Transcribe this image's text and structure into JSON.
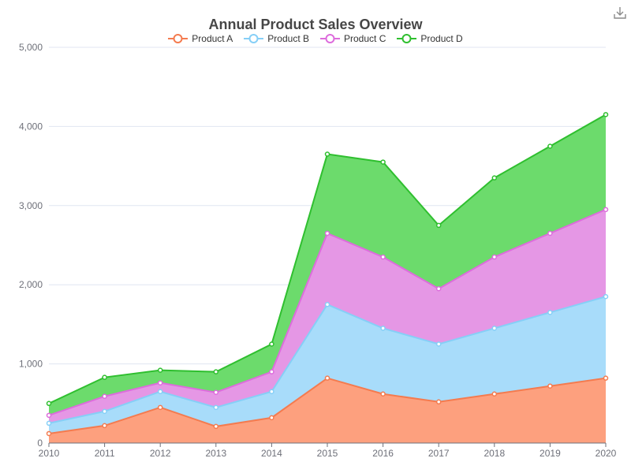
{
  "chart_data": {
    "type": "area",
    "stacked": true,
    "title": "Annual Product Sales Overview",
    "x": [
      "2010",
      "2011",
      "2012",
      "2013",
      "2014",
      "2015",
      "2016",
      "2017",
      "2018",
      "2019",
      "2020"
    ],
    "series": [
      {
        "name": "Product A",
        "color": "#f47b4f",
        "fill": "#fda07e",
        "values": [
          120,
          220,
          450,
          210,
          320,
          820,
          620,
          520,
          620,
          720,
          820
        ]
      },
      {
        "name": "Product B",
        "color": "#86cff7",
        "fill": "#a8dcfa",
        "values": [
          130,
          180,
          200,
          240,
          330,
          930,
          830,
          730,
          830,
          930,
          1030
        ]
      },
      {
        "name": "Product C",
        "color": "#dd6cdc",
        "fill": "#e597e5",
        "values": [
          100,
          190,
          110,
          190,
          250,
          900,
          900,
          700,
          900,
          1000,
          1100
        ]
      },
      {
        "name": "Product D",
        "color": "#2fbf2f",
        "fill": "#6cdb6c",
        "values": [
          150,
          240,
          160,
          260,
          350,
          1000,
          1200,
          800,
          1000,
          1100,
          1200
        ]
      }
    ],
    "ylim": [
      0,
      5000
    ],
    "yticks": [
      "0",
      "1,000",
      "2,000",
      "3,000",
      "4,000",
      "5,000"
    ],
    "grid": true,
    "legend_position": "top"
  },
  "toolbar": {
    "download_icon": "download-icon"
  }
}
